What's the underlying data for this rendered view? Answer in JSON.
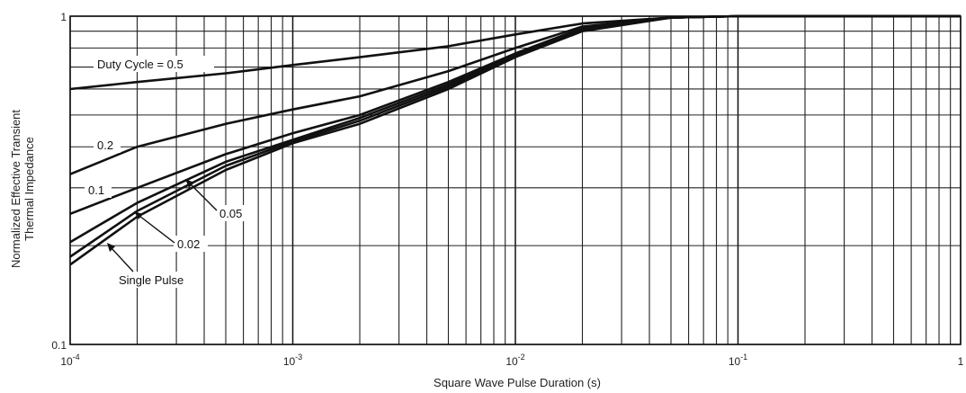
{
  "chart_data": {
    "type": "line",
    "xlabel": "Square Wave Pulse Duration (s)",
    "ylabel": "Normalized Effective Transient Thermal Impedance",
    "xscale": "log",
    "yscale": "log",
    "xlim": [
      0.0001,
      1
    ],
    "ylim": [
      0.1,
      1
    ],
    "grid": true,
    "x_ticks": [
      {
        "value": 0.0001,
        "base": "10",
        "exp": "-4"
      },
      {
        "value": 0.001,
        "base": "10",
        "exp": "-3"
      },
      {
        "value": 0.01,
        "base": "10",
        "exp": "-2"
      },
      {
        "value": 0.1,
        "base": "10",
        "exp": "-1"
      },
      {
        "value": 1,
        "base": "1",
        "exp": ""
      }
    ],
    "y_ticks": [
      {
        "value": 0.1,
        "label": "0.1"
      },
      {
        "value": 1,
        "label": "1"
      }
    ],
    "series": [
      {
        "name": "Duty Cycle = 0.5",
        "x": [
          0.0001,
          0.0002,
          0.0005,
          0.001,
          0.002,
          0.005,
          0.01,
          0.02,
          0.05,
          0.1,
          0.2,
          0.5,
          1
        ],
        "y": [
          0.6,
          0.63,
          0.67,
          0.71,
          0.75,
          0.81,
          0.88,
          0.95,
          0.99,
          1.0,
          1.0,
          1.0,
          1.0
        ]
      },
      {
        "name": "0.2",
        "x": [
          0.0001,
          0.0002,
          0.0005,
          0.001,
          0.002,
          0.005,
          0.01,
          0.02,
          0.05,
          0.1,
          0.2,
          0.5,
          1
        ],
        "y": [
          0.33,
          0.4,
          0.47,
          0.52,
          0.57,
          0.68,
          0.8,
          0.93,
          0.99,
          1.0,
          1.0,
          1.0,
          1.0
        ]
      },
      {
        "name": "0.1",
        "x": [
          0.0001,
          0.0002,
          0.0005,
          0.001,
          0.002,
          0.005,
          0.01,
          0.02,
          0.05,
          0.1,
          0.2,
          0.5,
          1
        ],
        "y": [
          0.25,
          0.3,
          0.38,
          0.44,
          0.5,
          0.63,
          0.77,
          0.92,
          0.99,
          1.0,
          1.0,
          1.0,
          1.0
        ]
      },
      {
        "name": "0.05",
        "x": [
          0.0001,
          0.0002,
          0.0005,
          0.001,
          0.002,
          0.005,
          0.01,
          0.02,
          0.05,
          0.1,
          0.2,
          0.5,
          1
        ],
        "y": [
          0.205,
          0.27,
          0.36,
          0.42,
          0.49,
          0.62,
          0.76,
          0.91,
          0.99,
          1.0,
          1.0,
          1.0,
          1.0
        ]
      },
      {
        "name": "0.02",
        "x": [
          0.0001,
          0.0002,
          0.0005,
          0.001,
          0.002,
          0.005,
          0.01,
          0.02,
          0.05,
          0.1,
          0.2,
          0.5,
          1
        ],
        "y": [
          0.185,
          0.255,
          0.35,
          0.415,
          0.48,
          0.61,
          0.755,
          0.91,
          0.99,
          1.0,
          1.0,
          1.0,
          1.0
        ]
      },
      {
        "name": "Single Pulse",
        "x": [
          0.0001,
          0.0002,
          0.0005,
          0.001,
          0.002,
          0.005,
          0.01,
          0.02,
          0.05,
          0.1,
          0.2,
          0.5,
          1
        ],
        "y": [
          0.175,
          0.245,
          0.34,
          0.41,
          0.47,
          0.6,
          0.75,
          0.9,
          0.99,
          1.0,
          1.0,
          1.0,
          1.0
        ]
      }
    ],
    "annotations": [
      {
        "text": "Duty Cycle = 0.5",
        "series": "Duty Cycle = 0.5"
      },
      {
        "text": "0.2",
        "series": "0.2"
      },
      {
        "text": "0.1",
        "series": "0.1"
      },
      {
        "text": "0.05",
        "series": "0.05"
      },
      {
        "text": "0.02",
        "series": "0.02"
      },
      {
        "text": "Single Pulse",
        "series": "Single Pulse"
      }
    ]
  }
}
